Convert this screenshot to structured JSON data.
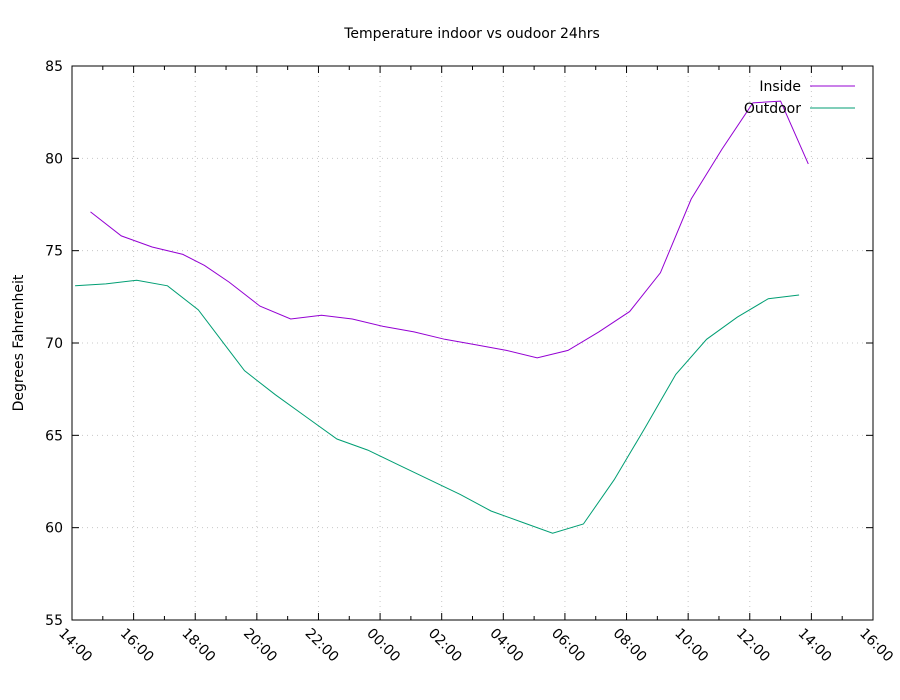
{
  "chart_data": {
    "type": "line",
    "title": "Temperature indoor vs oudoor 24hrs",
    "xlabel": "",
    "ylabel": "Degrees Fahrenheit",
    "x_ticks": [
      "14:00",
      "16:00",
      "18:00",
      "20:00",
      "22:00",
      "00:00",
      "02:00",
      "04:00",
      "06:00",
      "08:00",
      "10:00",
      "12:00",
      "14:00",
      "16:00"
    ],
    "ylim": [
      55,
      85
    ],
    "y_ticks": [
      55,
      60,
      65,
      70,
      75,
      80,
      85
    ],
    "xlim_hours": [
      0,
      26
    ],
    "grid": true,
    "legend": "top-right",
    "series": [
      {
        "name": "Inside",
        "color": "#9400d3",
        "x": [
          0.6,
          1.6,
          2.6,
          3.6,
          4.3,
          5.1,
          6.1,
          7.1,
          8.1,
          9.1,
          10.1,
          11.1,
          12.1,
          13.1,
          14.1,
          15.1,
          16.1,
          17.1,
          18.1,
          19.1,
          20.1,
          21.1,
          22.1,
          23.0,
          23.9
        ],
        "y": [
          77.1,
          75.8,
          75.2,
          74.8,
          74.2,
          73.3,
          72.0,
          71.3,
          71.5,
          71.3,
          70.9,
          70.6,
          70.2,
          69.9,
          69.6,
          69.2,
          69.6,
          70.6,
          71.7,
          73.8,
          77.8,
          80.5,
          83.0,
          83.1,
          79.7
        ]
      },
      {
        "name": "Outdoor",
        "color": "#009e73",
        "x": [
          0.1,
          1.1,
          2.1,
          3.1,
          4.1,
          5.1,
          5.6,
          6.6,
          7.6,
          8.6,
          9.6,
          10.6,
          11.6,
          12.6,
          13.6,
          14.6,
          15.6,
          16.6,
          17.6,
          18.6,
          19.6,
          20.6,
          21.6,
          22.6,
          23.6
        ],
        "y": [
          73.1,
          73.2,
          73.4,
          73.1,
          71.8,
          69.6,
          68.5,
          67.2,
          66.0,
          64.8,
          64.2,
          63.4,
          62.6,
          61.8,
          60.9,
          60.3,
          59.7,
          60.2,
          62.6,
          65.4,
          68.3,
          70.2,
          71.4,
          72.4,
          72.6
        ]
      }
    ]
  }
}
